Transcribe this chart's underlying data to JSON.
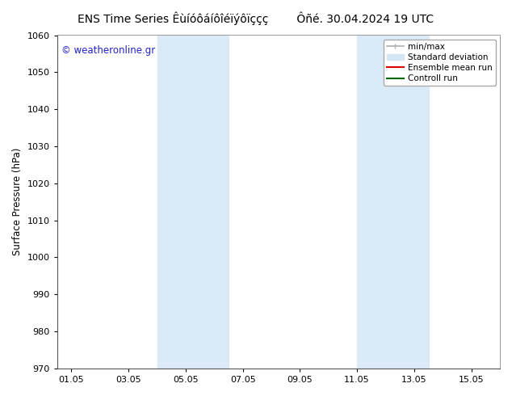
{
  "title_left": "ENS Time Series Êùíóôáíôîéïýôïççç",
  "title_right": "Ôñé. 30.04.2024 19 UTC",
  "ylabel": "Surface Pressure (hPa)",
  "ylim": [
    970,
    1060
  ],
  "yticks": [
    970,
    980,
    990,
    1000,
    1010,
    1020,
    1030,
    1040,
    1050,
    1060
  ],
  "xtick_labels": [
    "01.05",
    "03.05",
    "05.05",
    "07.05",
    "09.05",
    "11.05",
    "13.05",
    "15.05"
  ],
  "xtick_positions": [
    0,
    2,
    4,
    6,
    8,
    10,
    12,
    14
  ],
  "xlim": [
    -0.5,
    15.0
  ],
  "shaded_regions": [
    {
      "x_start": 3.0,
      "x_end": 5.5,
      "color": "#daeaf6"
    },
    {
      "x_start": 10.0,
      "x_end": 12.5,
      "color": "#daeaf6"
    }
  ],
  "watermark_text": "© weatheronline.gr",
  "watermark_color": "#2222cc",
  "background_color": "#ffffff",
  "legend_items": [
    {
      "label": "min/max",
      "color": "#b0b0b0",
      "lw": 1.2,
      "style": "errorbar"
    },
    {
      "label": "Standard deviation",
      "color": "#d4e6f5",
      "lw": 8,
      "style": "patch"
    },
    {
      "label": "Ensemble mean run",
      "color": "#dd0000",
      "lw": 1.5,
      "style": "line"
    },
    {
      "label": "Controll run",
      "color": "#006600",
      "lw": 1.5,
      "style": "line"
    }
  ],
  "title_fontsize": 10,
  "tick_fontsize": 8,
  "ylabel_fontsize": 8.5,
  "legend_fontsize": 7.5
}
